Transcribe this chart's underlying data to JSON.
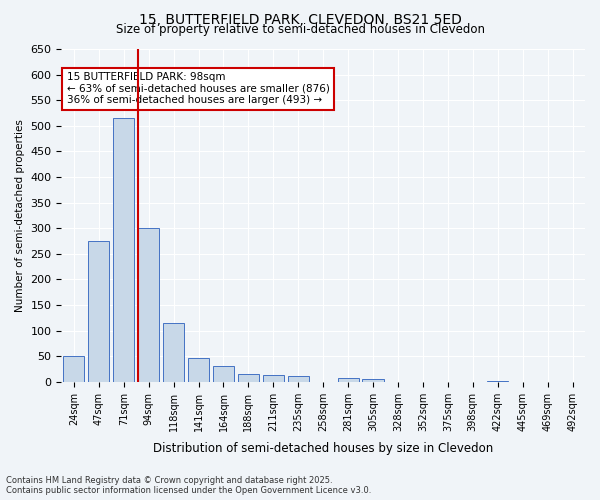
{
  "title_line1": "15, BUTTERFIELD PARK, CLEVEDON, BS21 5ED",
  "title_line2": "Size of property relative to semi-detached houses in Clevedon",
  "xlabel": "Distribution of semi-detached houses by size in Clevedon",
  "ylabel": "Number of semi-detached properties",
  "categories": [
    "24sqm",
    "47sqm",
    "71sqm",
    "94sqm",
    "118sqm",
    "141sqm",
    "164sqm",
    "188sqm",
    "211sqm",
    "235sqm",
    "258sqm",
    "281sqm",
    "305sqm",
    "328sqm",
    "352sqm",
    "375sqm",
    "398sqm",
    "422sqm",
    "445sqm",
    "469sqm",
    "492sqm"
  ],
  "values": [
    50,
    275,
    515,
    300,
    115,
    47,
    30,
    15,
    13,
    12,
    0,
    7,
    5,
    0,
    0,
    0,
    0,
    1,
    0,
    0,
    0
  ],
  "bar_color": "#c8d8e8",
  "bar_edge_color": "#4472c4",
  "vline_x": 3,
  "vline_color": "#cc0000",
  "annotation_title": "15 BUTTERFIELD PARK: 98sqm",
  "annotation_line1": "← 63% of semi-detached houses are smaller (876)",
  "annotation_line2": "36% of semi-detached houses are larger (493) →",
  "annotation_box_color": "#cc0000",
  "ylim": [
    0,
    650
  ],
  "yticks": [
    0,
    50,
    100,
    150,
    200,
    250,
    300,
    350,
    400,
    450,
    500,
    550,
    600,
    650
  ],
  "footnote_line1": "Contains HM Land Registry data © Crown copyright and database right 2025.",
  "footnote_line2": "Contains public sector information licensed under the Open Government Licence v3.0.",
  "background_color": "#f0f4f8",
  "grid_color": "#ffffff"
}
